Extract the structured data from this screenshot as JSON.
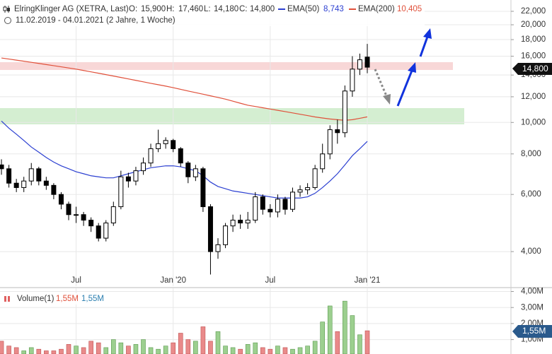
{
  "header": {
    "title": "ElringKlinger AG (XETRA, Last)",
    "o_label": "O:",
    "o": "15,900",
    "h_label": "H:",
    "h": "17,460",
    "l_label": "L:",
    "l": "14,180",
    "c_label": "C:",
    "c": "14,800",
    "ema50_value": "8,743",
    "ema200_value": "10,405",
    "range": "11.02.2019 - 04.01.2021",
    "span": "(2 Jahre, 1 Woche)",
    "price_tag": "14,800",
    "volume_name": "Volume(1)",
    "volume_value": "1,55M",
    "volume_value2": "1,55M",
    "volume_tag": "1,55M"
  },
  "chart_data": [
    {
      "type": "candlestick",
      "log": true,
      "grid": true,
      "up_color": "#ffffff",
      "down_color": "#000000",
      "categories": [
        null,
        null,
        null,
        null,
        null,
        null,
        null,
        null,
        null,
        null,
        "Jul",
        null,
        null,
        null,
        null,
        null,
        null,
        null,
        null,
        null,
        null,
        null,
        null,
        "Jan '20",
        null,
        null,
        null,
        null,
        null,
        null,
        null,
        null,
        null,
        null,
        null,
        null,
        "Jul",
        null,
        null,
        null,
        null,
        null,
        null,
        null,
        null,
        null,
        null,
        null,
        null,
        "Jan '21"
      ],
      "open": [
        7400,
        7200,
        6500,
        6300,
        6600,
        7200,
        6600,
        6400,
        6000,
        5600,
        5200,
        5200,
        5000,
        4800,
        4400,
        4900,
        5500,
        6800,
        6600,
        7100,
        7500,
        8300,
        8600,
        8800,
        8300,
        7500,
        6800,
        7200,
        5500,
        4000,
        4200,
        4800,
        5000,
        4900,
        5000,
        5900,
        5400,
        5300,
        5800,
        5400,
        6100,
        6200,
        6300,
        7200,
        8000,
        9500,
        9300,
        12500,
        14600,
        15900
      ],
      "high": [
        7700,
        7400,
        6700,
        6800,
        7500,
        7300,
        6800,
        6500,
        6100,
        5700,
        5500,
        5300,
        5100,
        4900,
        5000,
        5700,
        7100,
        7000,
        7300,
        7800,
        8600,
        9500,
        9000,
        8900,
        8400,
        7600,
        7400,
        7300,
        5600,
        4400,
        4900,
        5200,
        5200,
        5300,
        6100,
        6000,
        5600,
        6000,
        5900,
        6300,
        6400,
        6500,
        7400,
        8600,
        9800,
        10200,
        13000,
        16000,
        16300,
        17460
      ],
      "low": [
        6900,
        6300,
        6100,
        6100,
        6400,
        6400,
        6200,
        5800,
        5400,
        5000,
        4900,
        4800,
        4600,
        4300,
        4300,
        4800,
        5400,
        6300,
        6400,
        6900,
        7300,
        8100,
        8300,
        8100,
        7300,
        6500,
        6600,
        5300,
        3400,
        3800,
        4100,
        4600,
        4700,
        4700,
        4900,
        5200,
        5100,
        5100,
        5200,
        5300,
        5900,
        6000,
        6200,
        7000,
        7700,
        8600,
        9000,
        12000,
        14000,
        14180
      ],
      "close": [
        7200,
        6500,
        6300,
        6600,
        7200,
        6600,
        6400,
        6000,
        5600,
        5200,
        5200,
        5000,
        4800,
        4400,
        4900,
        5500,
        6800,
        6600,
        7100,
        7500,
        8300,
        8600,
        8800,
        8300,
        7500,
        6800,
        7200,
        5500,
        4000,
        4200,
        4800,
        5000,
        4900,
        5000,
        5900,
        5400,
        5300,
        5800,
        5400,
        6100,
        6200,
        6300,
        7200,
        8000,
        9500,
        9300,
        12500,
        14600,
        15600,
        14800
      ],
      "series": [
        {
          "name": "EMA(50)",
          "color": "#2b3fd1",
          "values": [
            10100,
            9600,
            9200,
            8800,
            8400,
            8100,
            7800,
            7550,
            7350,
            7200,
            7050,
            6950,
            6850,
            6800,
            6750,
            6750,
            6850,
            6950,
            7050,
            7150,
            7250,
            7300,
            7350,
            7350,
            7300,
            7200,
            7100,
            6850,
            6550,
            6350,
            6250,
            6150,
            6100,
            6050,
            6000,
            5950,
            5900,
            5850,
            5850,
            5850,
            5850,
            5900,
            6050,
            6300,
            6600,
            6950,
            7400,
            7900,
            8300,
            8743
          ]
        },
        {
          "name": "EMA(200)",
          "color": "#e0503a",
          "values": [
            15800,
            15680,
            15560,
            15440,
            15320,
            15200,
            15080,
            14960,
            14840,
            14720,
            14600,
            14460,
            14320,
            14180,
            14040,
            13900,
            13760,
            13620,
            13480,
            13340,
            13200,
            13070,
            12940,
            12800,
            12650,
            12500,
            12360,
            12220,
            12080,
            11940,
            11800,
            11630,
            11460,
            11300,
            11200,
            11100,
            11000,
            10900,
            10800,
            10700,
            10600,
            10500,
            10400,
            10320,
            10250,
            10200,
            10150,
            10200,
            10300,
            10405
          ]
        }
      ],
      "ylim": [
        3130,
        23250
      ],
      "yticks": [
        {
          "value": 4000,
          "label": "4,000"
        },
        {
          "value": 6000,
          "label": "6,000"
        },
        {
          "value": 8000,
          "label": "8,000"
        },
        {
          "value": 10000,
          "label": "10,000"
        },
        {
          "value": 12000,
          "label": "12,000"
        },
        {
          "value": 14000,
          "label": "14,000"
        },
        {
          "value": 16000,
          "label": "16,000"
        },
        {
          "value": 18000,
          "label": "18,000"
        },
        {
          "value": 20000,
          "label": "20,000"
        },
        {
          "value": 22000,
          "label": "22,000"
        }
      ]
    },
    {
      "type": "bar",
      "up_color": "#9ccf8f",
      "down_color": "#e98a8a",
      "grid": true,
      "values": [
        900000,
        600000,
        500000,
        300000,
        500000,
        400000,
        300000,
        300000,
        400000,
        700000,
        600000,
        500000,
        900000,
        800000,
        500000,
        1000000,
        800000,
        600000,
        700000,
        1000000,
        500000,
        400000,
        600000,
        800000,
        1400000,
        1000000,
        900000,
        1800000,
        900000,
        1500000,
        600000,
        500000,
        400000,
        700000,
        800000,
        500000,
        400000,
        600000,
        500000,
        400000,
        500000,
        600000,
        900000,
        2100000,
        3100000,
        1500000,
        3400000,
        2500000,
        1300000,
        1550000
      ],
      "ylim": [
        100000,
        4200000
      ],
      "yticks": [
        {
          "value": 1000000,
          "label": "1,00M"
        },
        {
          "value": 2000000,
          "label": "2,00M"
        },
        {
          "value": 3000000,
          "label": "3,00M"
        },
        {
          "value": 4000000,
          "label": "4,00M"
        }
      ]
    }
  ]
}
